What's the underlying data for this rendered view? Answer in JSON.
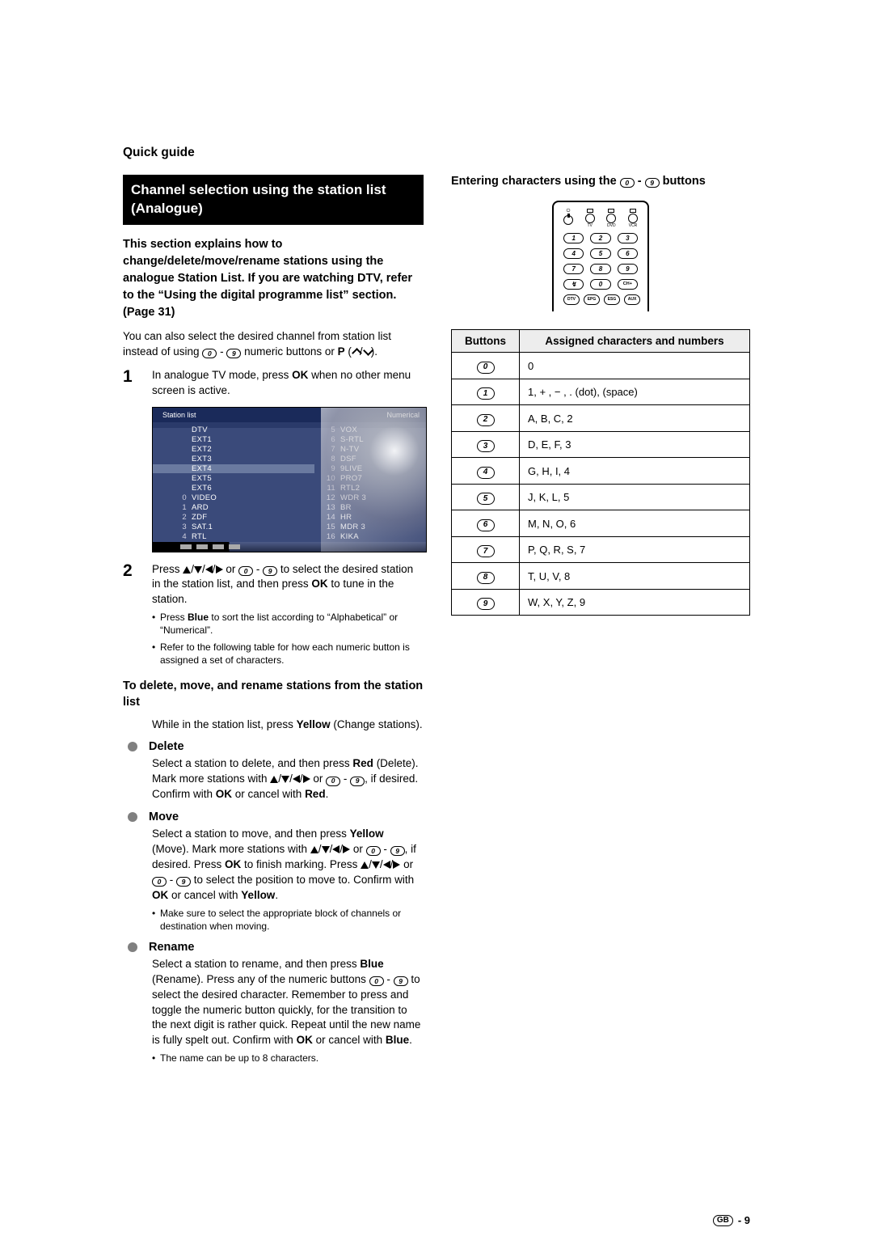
{
  "page": {
    "quick_guide": "Quick guide",
    "page_label": "- 9",
    "lang_badge": "GB"
  },
  "section": {
    "title": "Channel selection using the station list (Analogue)",
    "intro": "This section explains how to change/delete/move/rename stations using the analogue Station List. If you are watching DTV, refer to the “Using the digital programme list” section. (Page 31)",
    "after_intro_a": "You can also select the desired channel from station list instead of using ",
    "after_intro_b": " numeric buttons or ",
    "after_intro_c": "."
  },
  "steps": {
    "s1": {
      "num": "1",
      "a": "In analogue TV mode, press ",
      "ok": "OK",
      "b": " when no other menu screen is active."
    },
    "s2": {
      "num": "2",
      "a": "Press ",
      "b": " or ",
      "c": " to select the desired station in the station list, and then press ",
      "ok": "OK",
      "d": " to tune in the station.",
      "bullet1a": "Press ",
      "bullet1_blue": "Blue",
      "bullet1b": " to sort the list according to “Alphabetical” or “Numerical”.",
      "bullet2": "Refer to the following table for how each numeric button is assigned a set of characters."
    }
  },
  "station_list": {
    "title": "Station list",
    "sort_label": "Numerical",
    "col1": [
      {
        "idx": "",
        "name": "DTV"
      },
      {
        "idx": "",
        "name": "EXT1"
      },
      {
        "idx": "",
        "name": "EXT2"
      },
      {
        "idx": "",
        "name": "EXT3"
      },
      {
        "idx": "",
        "name": "EXT4",
        "selected": true
      },
      {
        "idx": "",
        "name": "EXT5"
      },
      {
        "idx": "",
        "name": "EXT6"
      },
      {
        "idx": "0",
        "name": "VIDEO"
      },
      {
        "idx": "1",
        "name": "ARD"
      },
      {
        "idx": "2",
        "name": "ZDF"
      },
      {
        "idx": "3",
        "name": "SAT.1"
      },
      {
        "idx": "4",
        "name": "RTL"
      }
    ],
    "col2": [
      {
        "idx": "5",
        "name": "VOX"
      },
      {
        "idx": "6",
        "name": "S-RTL"
      },
      {
        "idx": "7",
        "name": "N-TV"
      },
      {
        "idx": "8",
        "name": "DSF"
      },
      {
        "idx": "9",
        "name": "9LIVE"
      },
      {
        "idx": "10",
        "name": "PRO7"
      },
      {
        "idx": "11",
        "name": "RTL2"
      },
      {
        "idx": "12",
        "name": "WDR 3"
      },
      {
        "idx": "13",
        "name": "BR"
      },
      {
        "idx": "14",
        "name": "HR"
      },
      {
        "idx": "15",
        "name": "MDR 3"
      },
      {
        "idx": "16",
        "name": "KIKA"
      }
    ]
  },
  "edit": {
    "heading": "To delete, move, and rename stations from the station list",
    "intro_a": "While in the station list, press ",
    "intro_yellow": "Yellow",
    "intro_b": " (Change stations).",
    "delete": {
      "label": "Delete",
      "a": "Select a station to delete, and then press ",
      "red": "Red",
      "b": " (Delete). Mark more stations with ",
      "c": " or ",
      "d": ", if desired. Confirm with ",
      "ok": "OK",
      "e": " or cancel with ",
      "f": "."
    },
    "move": {
      "label": "Move",
      "a": "Select a station to move, and then press ",
      "yellow": "Yellow",
      "b": " (Move). Mark more stations with ",
      "c": " or ",
      "d": ", if desired. Press ",
      "ok": "OK",
      "e": " to finish marking. Press ",
      "f": " or ",
      "g": " to select the position to move to. Confirm with ",
      "h": " or cancel with ",
      "i": ".",
      "note": "Make sure to select the appropriate block of channels or destination when moving."
    },
    "rename": {
      "label": "Rename",
      "a": "Select a station to rename, and then press ",
      "blue": "Blue",
      "b": " (Rename). Press any of the numeric buttons ",
      "c": " - ",
      "d": " to select the desired character. Remember to press and toggle the numeric button quickly, for the transition to the next digit is rather quick. Repeat until the new name is fully spelt out. Confirm with ",
      "ok": "OK",
      "e": " or cancel with ",
      "f": ".",
      "note": "The name can be up to 8 characters."
    }
  },
  "right": {
    "heading_a": "Entering characters using the ",
    "heading_b": " - ",
    "heading_c": " buttons"
  },
  "remote": {
    "nums": [
      "1",
      "2",
      "3",
      "4",
      "5",
      "6",
      "7",
      "8",
      "9",
      "0"
    ],
    "flash": "↯",
    "chplus": "CH+",
    "bottom": [
      "DTV",
      "EPG",
      "ESG",
      "AUX"
    ]
  },
  "char_table": {
    "h1": "Buttons",
    "h2": "Assigned characters and numbers",
    "rows": [
      {
        "k": "0",
        "v": "0"
      },
      {
        "k": "1",
        "v": "1,  + ,  − ,  . (dot), (space)"
      },
      {
        "k": "2",
        "v": "A, B, C, 2"
      },
      {
        "k": "3",
        "v": "D, E, F, 3"
      },
      {
        "k": "4",
        "v": "G, H, I, 4"
      },
      {
        "k": "5",
        "v": "J, K, L, 5"
      },
      {
        "k": "6",
        "v": "M, N, O, 6"
      },
      {
        "k": "7",
        "v": "P, Q, R, S, 7"
      },
      {
        "k": "8",
        "v": "T, U, V, 8"
      },
      {
        "k": "9",
        "v": "W, X, Y, Z, 9"
      }
    ]
  },
  "keys": {
    "k0": "0",
    "k1": "1",
    "k2": "2",
    "k3": "3",
    "k4": "4",
    "k5": "5",
    "k6": "6",
    "k7": "7",
    "k8": "8",
    "k9": "9",
    "P": "P"
  }
}
